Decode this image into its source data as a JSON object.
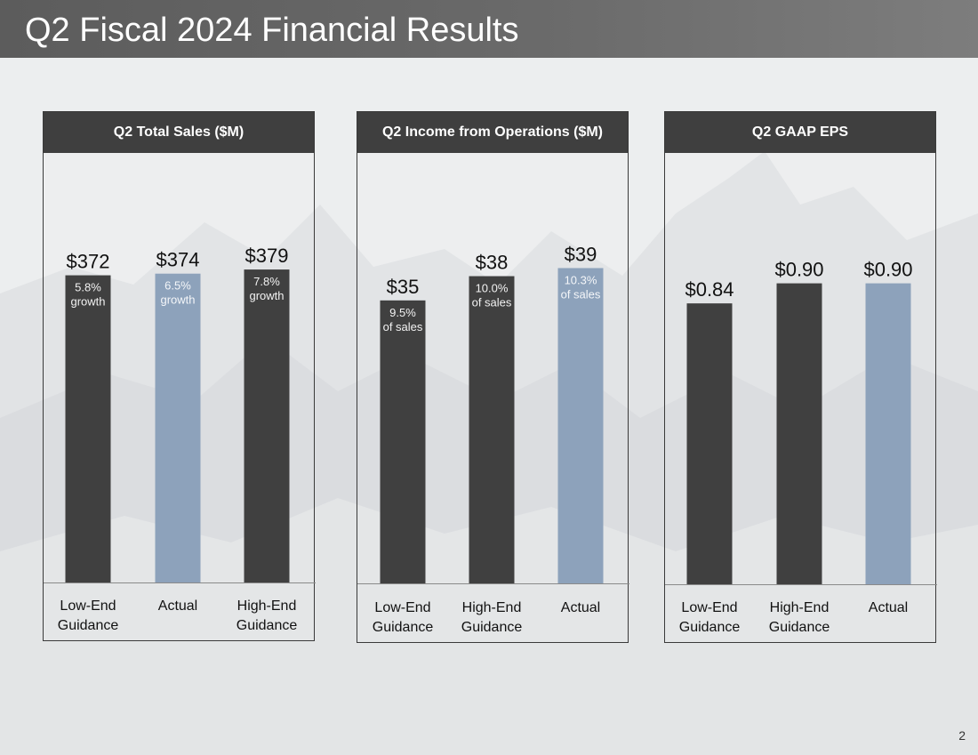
{
  "slide": {
    "title": "Q2 Fiscal 2024 Financial Results",
    "page_number": "2"
  },
  "colors": {
    "bar_dark": "#404040",
    "bar_highlight": "#8da2bb",
    "header_bg": "#3f3f3f"
  },
  "chart_data": [
    {
      "type": "bar",
      "title": "Q2 Total Sales ($M)",
      "categories": [
        "Low-End Guidance",
        "Actual",
        "High-End Guidance"
      ],
      "category_lines": [
        [
          "Low-End",
          "Guidance"
        ],
        [
          "Actual"
        ],
        [
          "High-End",
          "Guidance"
        ]
      ],
      "values": [
        372,
        374,
        379
      ],
      "value_labels": [
        "$372",
        "$374",
        "$379"
      ],
      "inner_labels": [
        [
          "5.8%",
          "growth"
        ],
        [
          "6.5%",
          "growth"
        ],
        [
          "7.8%",
          "growth"
        ]
      ],
      "highlight": [
        false,
        true,
        false
      ],
      "ylim": [
        0,
        420
      ]
    },
    {
      "type": "bar",
      "title": "Q2 Income from Operations ($M)",
      "categories": [
        "Low-End Guidance",
        "High-End Guidance",
        "Actual"
      ],
      "category_lines": [
        [
          "Low-End",
          "Guidance"
        ],
        [
          "High-End",
          "Guidance"
        ],
        [
          "Actual"
        ]
      ],
      "values": [
        35,
        38,
        39
      ],
      "value_labels": [
        "$35",
        "$38",
        "$39"
      ],
      "inner_labels": [
        [
          "9.5%",
          "of sales"
        ],
        [
          "10.0%",
          "of sales"
        ],
        [
          "10.3%",
          "of sales"
        ]
      ],
      "highlight": [
        false,
        false,
        true
      ],
      "ylim": [
        0,
        44
      ]
    },
    {
      "type": "bar",
      "title": "Q2 GAAP EPS",
      "categories": [
        "Low-End Guidance",
        "High-End Guidance",
        "Actual"
      ],
      "category_lines": [
        [
          "Low-End",
          "Guidance"
        ],
        [
          "High-End",
          "Guidance"
        ],
        [
          "Actual"
        ]
      ],
      "values": [
        0.84,
        0.9,
        0.9
      ],
      "value_labels": [
        "$0.84",
        "$0.90",
        "$0.90"
      ],
      "inner_labels": [
        [],
        [],
        []
      ],
      "highlight": [
        false,
        false,
        true
      ],
      "ylim": [
        0,
        1.0
      ]
    }
  ]
}
